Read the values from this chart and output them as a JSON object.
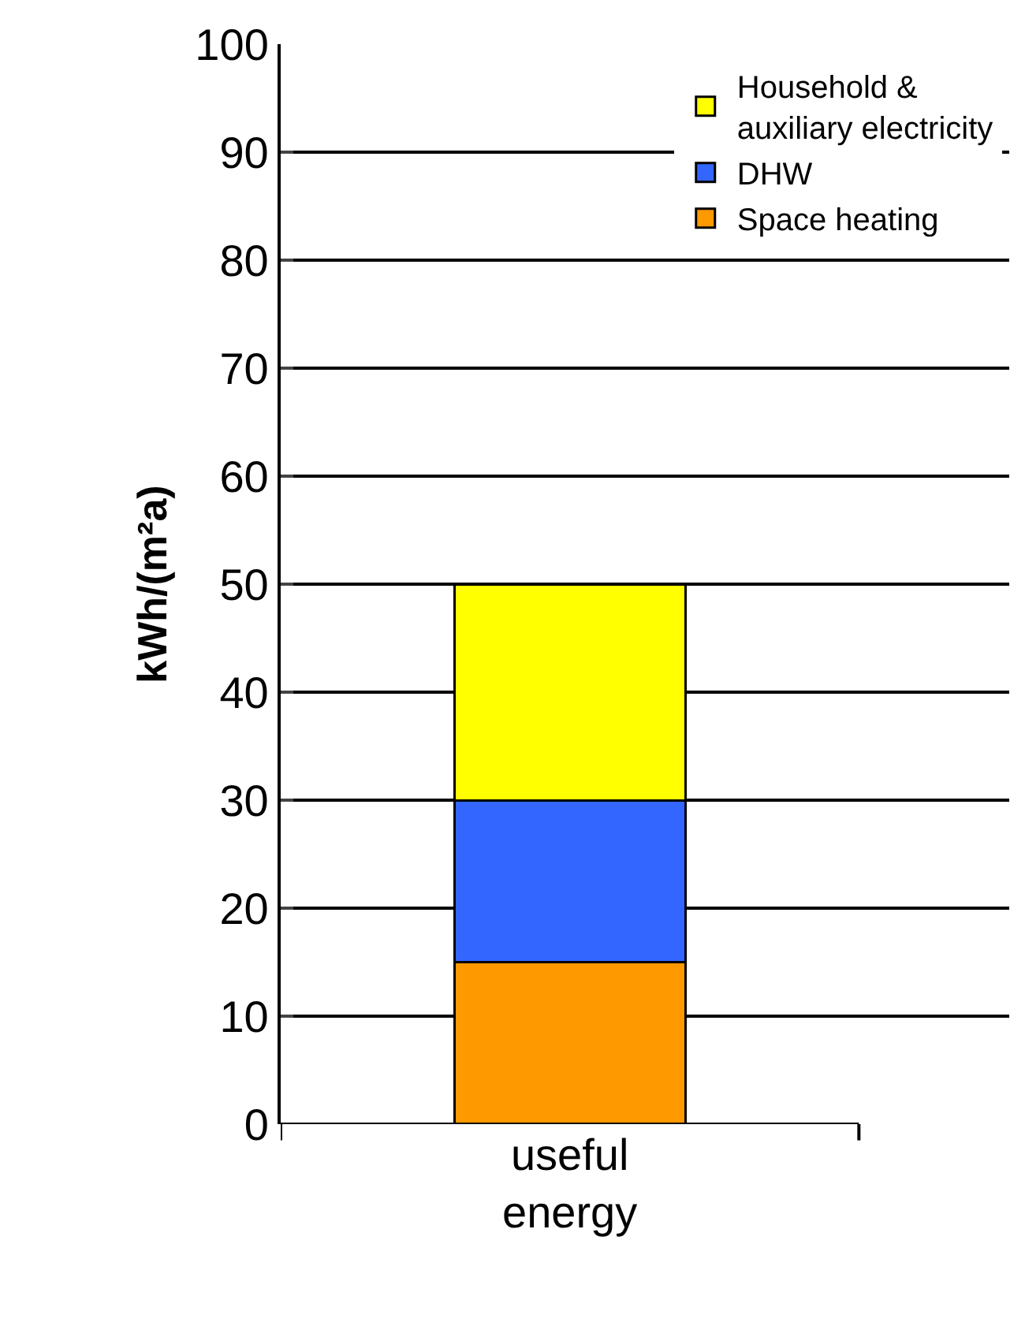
{
  "chart_data": {
    "type": "bar",
    "stacked": true,
    "categories": [
      "useful\nenergy"
    ],
    "series": [
      {
        "name": "Space heating",
        "color": "#ff9900",
        "values": [
          15
        ]
      },
      {
        "name": "DHW",
        "color": "#3366ff",
        "values": [
          15
        ]
      },
      {
        "name": "Household &\nauxiliary electricity",
        "color": "#ffff00",
        "values": [
          20
        ]
      }
    ],
    "ylabel": "kWh/(m²a)",
    "ylim": [
      0,
      100
    ],
    "yticks": [
      0,
      10,
      20,
      30,
      40,
      50,
      60,
      70,
      80,
      90,
      100
    ],
    "grid": "y",
    "legend": "top right"
  }
}
